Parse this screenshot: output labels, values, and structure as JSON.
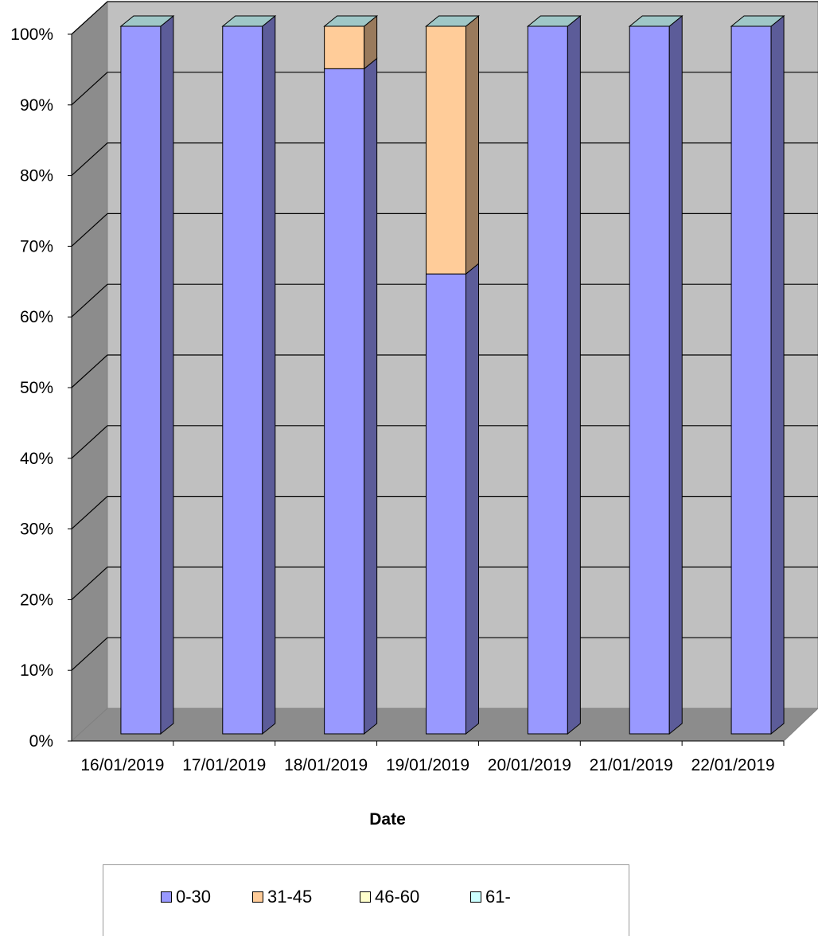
{
  "chart_data": {
    "type": "bar",
    "stacked": true,
    "normalized_100_percent": true,
    "three_d": true,
    "xlabel": "Date",
    "ylabel": "",
    "categories": [
      "16/01/2019",
      "17/01/2019",
      "18/01/2019",
      "19/01/2019",
      "20/01/2019",
      "21/01/2019",
      "22/01/2019"
    ],
    "y_ticks": [
      "0%",
      "10%",
      "20%",
      "30%",
      "40%",
      "50%",
      "60%",
      "70%",
      "80%",
      "90%",
      "100%"
    ],
    "ylim": [
      0,
      100
    ],
    "grid": true,
    "legend_position": "bottom",
    "series": [
      {
        "name": "0-30",
        "color": "#9999ff",
        "values": [
          100,
          100,
          94,
          65,
          100,
          100,
          100
        ]
      },
      {
        "name": "31-45",
        "color": "#ffcc99",
        "values": [
          0,
          0,
          6,
          35,
          0,
          0,
          0
        ]
      },
      {
        "name": "46-60",
        "color": "#ffffcc",
        "values": [
          0,
          0,
          0,
          0,
          0,
          0,
          0
        ]
      },
      {
        "name": "61-",
        "color": "#ccffff",
        "values": [
          0,
          0,
          0,
          0,
          0,
          0,
          0
        ]
      }
    ]
  }
}
